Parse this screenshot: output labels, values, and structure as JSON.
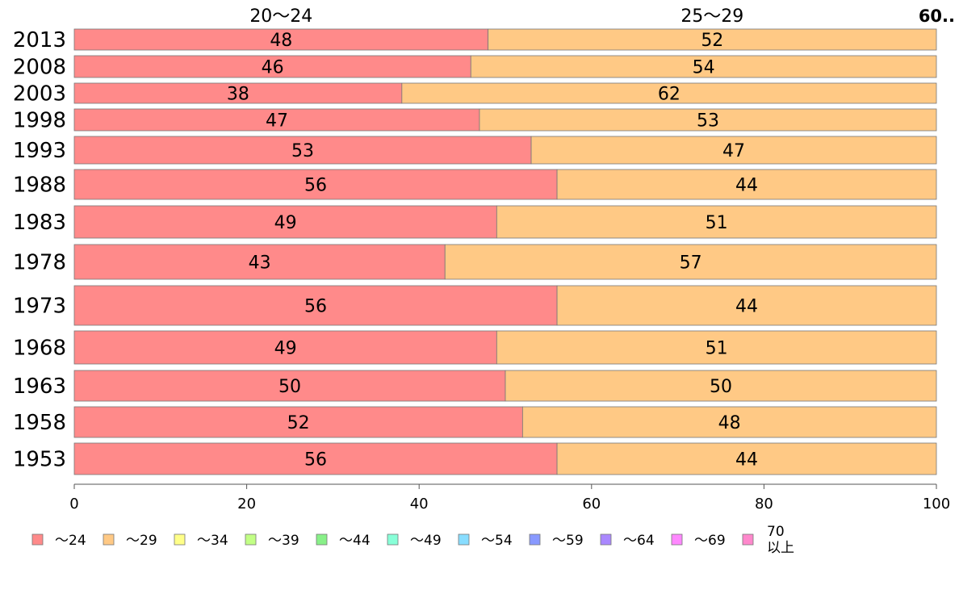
{
  "chart_data": {
    "type": "bar",
    "orientation": "horizontal",
    "stacked": true,
    "categories": [
      "2013",
      "2008",
      "2003",
      "1998",
      "1993",
      "1988",
      "1983",
      "1978",
      "1973",
      "1968",
      "1963",
      "1958",
      "1953"
    ],
    "series": [
      {
        "name": "〜24",
        "color": "#ff8a8a",
        "values": [
          48,
          46,
          38,
          47,
          53,
          56,
          49,
          43,
          56,
          49,
          50,
          52,
          56
        ]
      },
      {
        "name": "〜29",
        "color": "#ffc985",
        "values": [
          52,
          54,
          62,
          53,
          47,
          44,
          51,
          57,
          44,
          51,
          50,
          48,
          44
        ]
      },
      {
        "name": "〜34",
        "color": "#ffff88",
        "values": [
          0,
          0,
          0,
          0,
          0,
          0,
          0,
          0,
          0,
          0,
          0,
          0,
          0
        ]
      },
      {
        "name": "〜39",
        "color": "#c2ff85",
        "values": [
          0,
          0,
          0,
          0,
          0,
          0,
          0,
          0,
          0,
          0,
          0,
          0,
          0
        ]
      },
      {
        "name": "〜44",
        "color": "#88f088",
        "values": [
          0,
          0,
          0,
          0,
          0,
          0,
          0,
          0,
          0,
          0,
          0,
          0,
          0
        ]
      },
      {
        "name": "〜49",
        "color": "#88ffd8",
        "values": [
          0,
          0,
          0,
          0,
          0,
          0,
          0,
          0,
          0,
          0,
          0,
          0,
          0
        ]
      },
      {
        "name": "〜54",
        "color": "#88ddff",
        "values": [
          0,
          0,
          0,
          0,
          0,
          0,
          0,
          0,
          0,
          0,
          0,
          0,
          0
        ]
      },
      {
        "name": "〜59",
        "color": "#8899ff",
        "values": [
          0,
          0,
          0,
          0,
          0,
          0,
          0,
          0,
          0,
          0,
          0,
          0,
          0
        ]
      },
      {
        "name": "〜64",
        "color": "#aa88ff",
        "values": [
          0,
          0,
          0,
          0,
          0,
          0,
          0,
          0,
          0,
          0,
          0,
          0,
          0
        ]
      },
      {
        "name": "〜69",
        "color": "#ff88ff",
        "values": [
          0,
          0,
          0,
          0,
          0,
          0,
          0,
          0,
          0,
          0,
          0,
          0,
          0
        ]
      },
      {
        "name": "70 以上",
        "color": "#ff88cc",
        "values": [
          0,
          0,
          0,
          0,
          0,
          0,
          0,
          0,
          0,
          0,
          0,
          0,
          0
        ]
      }
    ],
    "top_labels": [
      "20〜24",
      "25〜29"
    ],
    "top_right_overlap_text": "60..",
    "xlim": [
      0,
      100
    ],
    "xticks": [
      0,
      20,
      40,
      60,
      80,
      100
    ],
    "legend_position": "bottom",
    "grid": false
  }
}
